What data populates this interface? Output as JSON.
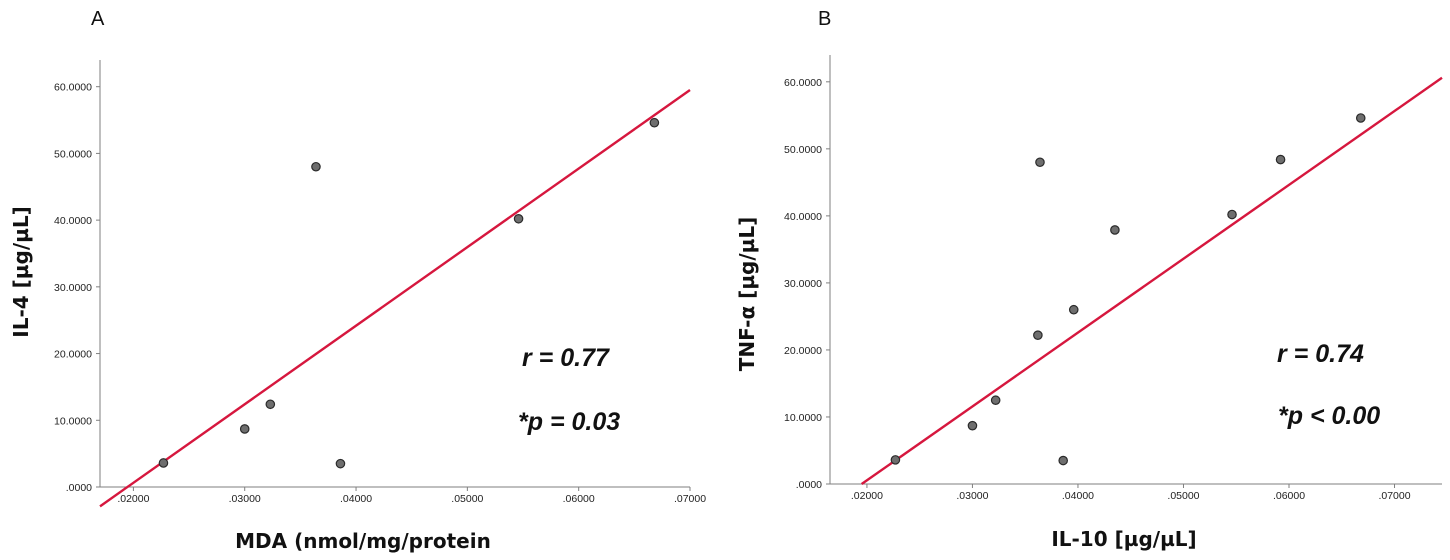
{
  "chart_data": [
    {
      "type": "scatter",
      "panel": "A",
      "xlabel": "MDA (nmol/mg/protein",
      "ylabel": "IL-4 [µg/µL]",
      "xlim": [
        0.017,
        0.07
      ],
      "ylim": [
        0,
        64
      ],
      "x_ticks": [
        0.02,
        0.03,
        0.04,
        0.05,
        0.06,
        0.07
      ],
      "x_tick_labels": [
        ".02000",
        ".03000",
        ".04000",
        ".05000",
        ".06000",
        ".07000"
      ],
      "y_ticks": [
        0,
        10,
        20,
        30,
        40,
        50,
        60
      ],
      "y_tick_labels": [
        ".0000",
        "10.0000",
        "20.0000",
        "30.0000",
        "40.0000",
        "50.0000",
        "60.0000"
      ],
      "points": [
        {
          "x": 0.0227,
          "y": 3.6
        },
        {
          "x": 0.03,
          "y": 8.7
        },
        {
          "x": 0.0323,
          "y": 12.4
        },
        {
          "x": 0.0364,
          "y": 48.0
        },
        {
          "x": 0.0386,
          "y": 3.5
        },
        {
          "x": 0.0546,
          "y": 40.2
        },
        {
          "x": 0.0668,
          "y": 54.6
        }
      ],
      "fit_line": {
        "x0": 0.017,
        "y0": -2.9,
        "x1": 0.07,
        "y1": 59.5
      },
      "annotations": [
        "r = 0.77",
        "*p = 0.03"
      ],
      "grid": false,
      "marker_color": "#6e6e6e",
      "line_color": "#d6173e"
    },
    {
      "type": "scatter",
      "panel": "B",
      "xlabel": "IL-10 [µg/µL]",
      "ylabel": "TNF-α [µg/µL]",
      "xlim": [
        0.0165,
        0.0745
      ],
      "ylim": [
        0,
        64
      ],
      "x_ticks": [
        0.02,
        0.03,
        0.04,
        0.05,
        0.06,
        0.07
      ],
      "x_tick_labels": [
        ".02000",
        ".03000",
        ".04000",
        ".05000",
        ".06000",
        ".07000"
      ],
      "y_ticks": [
        0,
        10,
        20,
        30,
        40,
        50,
        60
      ],
      "y_tick_labels": [
        ".0000",
        "10.0000",
        "20.0000",
        "30.0000",
        "40.0000",
        "50.0000",
        "60.0000"
      ],
      "points": [
        {
          "x": 0.0227,
          "y": 3.6
        },
        {
          "x": 0.03,
          "y": 8.7
        },
        {
          "x": 0.0322,
          "y": 12.5
        },
        {
          "x": 0.0362,
          "y": 22.2
        },
        {
          "x": 0.0364,
          "y": 48.0
        },
        {
          "x": 0.0386,
          "y": 3.5
        },
        {
          "x": 0.0396,
          "y": 26.0
        },
        {
          "x": 0.0435,
          "y": 37.9
        },
        {
          "x": 0.0546,
          "y": 40.2
        },
        {
          "x": 0.0592,
          "y": 48.4
        },
        {
          "x": 0.0668,
          "y": 54.6
        }
      ],
      "fit_line": {
        "x0": 0.0195,
        "y0": 0.0,
        "x1": 0.0745,
        "y1": 60.6
      },
      "annotations": [
        "r = 0.74",
        "*p < 0.00"
      ],
      "grid": false,
      "marker_color": "#6e6e6e",
      "line_color": "#d6173e"
    }
  ]
}
